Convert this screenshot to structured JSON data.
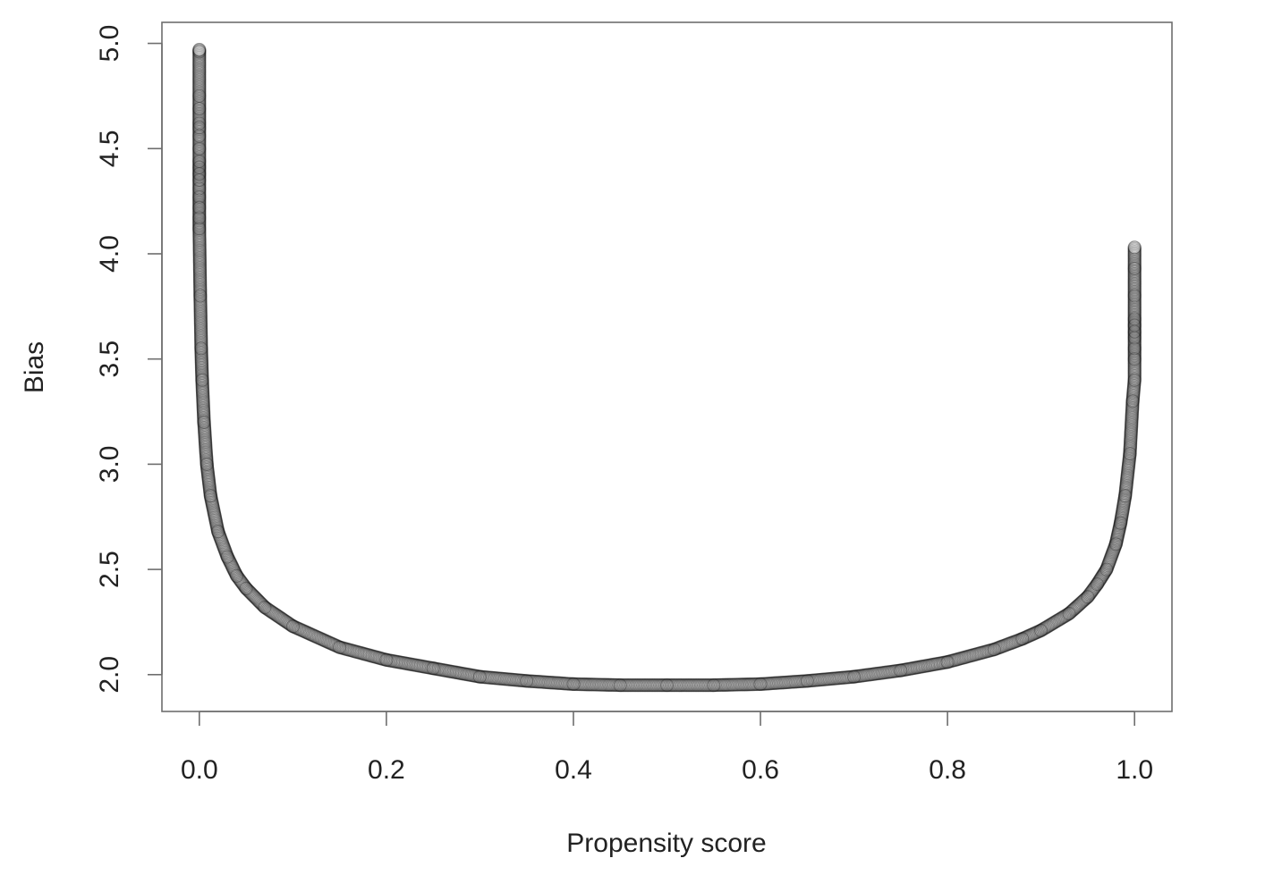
{
  "chart_data": {
    "type": "scatter",
    "title": "",
    "xlabel": "Propensity score",
    "ylabel": "Bias",
    "xlim": [
      -0.04,
      1.04
    ],
    "ylim": [
      1.825,
      5.1
    ],
    "x_ticks": [
      0.0,
      0.2,
      0.4,
      0.6,
      0.8,
      1.0
    ],
    "x_tick_labels": [
      "0.0",
      "0.2",
      "0.4",
      "0.6",
      "0.8",
      "1.0"
    ],
    "y_ticks": [
      2.0,
      2.5,
      3.0,
      3.5,
      4.0,
      4.5,
      5.0
    ],
    "y_tick_labels": [
      "2.0",
      "2.5",
      "3.0",
      "3.5",
      "4.0",
      "4.5",
      "5.0"
    ],
    "grid": false,
    "legend": "none",
    "marker": "open-circle",
    "series": [
      {
        "points": [
          {
            "x": 0.0,
            "y": 4.97
          },
          {
            "x": 0.0,
            "y": 4.96
          },
          {
            "x": 0.0,
            "y": 4.75
          },
          {
            "x": 0.0,
            "y": 4.69
          },
          {
            "x": 0.0,
            "y": 4.62
          },
          {
            "x": 0.0,
            "y": 4.6
          },
          {
            "x": 0.0,
            "y": 4.56
          },
          {
            "x": 0.0,
            "y": 4.5
          },
          {
            "x": 0.0,
            "y": 4.44
          },
          {
            "x": 0.0,
            "y": 4.41
          },
          {
            "x": 0.0,
            "y": 4.38
          },
          {
            "x": 0.0,
            "y": 4.35
          },
          {
            "x": 0.0,
            "y": 4.31
          },
          {
            "x": 0.0,
            "y": 4.27
          },
          {
            "x": 0.0,
            "y": 4.22
          },
          {
            "x": 0.0,
            "y": 4.17
          },
          {
            "x": 0.0,
            "y": 4.12
          },
          {
            "x": 0.001,
            "y": 3.8
          },
          {
            "x": 0.002,
            "y": 3.55
          },
          {
            "x": 0.003,
            "y": 3.4
          },
          {
            "x": 0.005,
            "y": 3.2
          },
          {
            "x": 0.008,
            "y": 3.0
          },
          {
            "x": 0.012,
            "y": 2.85
          },
          {
            "x": 0.02,
            "y": 2.68
          },
          {
            "x": 0.03,
            "y": 2.56
          },
          {
            "x": 0.04,
            "y": 2.47
          },
          {
            "x": 0.05,
            "y": 2.41
          },
          {
            "x": 0.07,
            "y": 2.32
          },
          {
            "x": 0.1,
            "y": 2.23
          },
          {
            "x": 0.15,
            "y": 2.13
          },
          {
            "x": 0.2,
            "y": 2.07
          },
          {
            "x": 0.25,
            "y": 2.03
          },
          {
            "x": 0.3,
            "y": 1.99
          },
          {
            "x": 0.35,
            "y": 1.97
          },
          {
            "x": 0.4,
            "y": 1.955
          },
          {
            "x": 0.45,
            "y": 1.95
          },
          {
            "x": 0.5,
            "y": 1.95
          },
          {
            "x": 0.55,
            "y": 1.95
          },
          {
            "x": 0.6,
            "y": 1.955
          },
          {
            "x": 0.65,
            "y": 1.97
          },
          {
            "x": 0.7,
            "y": 1.99
          },
          {
            "x": 0.75,
            "y": 2.02
          },
          {
            "x": 0.8,
            "y": 2.06
          },
          {
            "x": 0.85,
            "y": 2.12
          },
          {
            "x": 0.88,
            "y": 2.17
          },
          {
            "x": 0.9,
            "y": 2.21
          },
          {
            "x": 0.93,
            "y": 2.29
          },
          {
            "x": 0.95,
            "y": 2.37
          },
          {
            "x": 0.96,
            "y": 2.43
          },
          {
            "x": 0.97,
            "y": 2.5
          },
          {
            "x": 0.98,
            "y": 2.62
          },
          {
            "x": 0.985,
            "y": 2.72
          },
          {
            "x": 0.99,
            "y": 2.85
          },
          {
            "x": 0.995,
            "y": 3.05
          },
          {
            "x": 0.998,
            "y": 3.3
          },
          {
            "x": 1.0,
            "y": 3.4
          },
          {
            "x": 1.0,
            "y": 3.5
          },
          {
            "x": 1.0,
            "y": 3.55
          },
          {
            "x": 1.0,
            "y": 3.6
          },
          {
            "x": 1.0,
            "y": 3.63
          },
          {
            "x": 1.0,
            "y": 3.66
          },
          {
            "x": 1.0,
            "y": 3.69
          },
          {
            "x": 1.0,
            "y": 3.8
          },
          {
            "x": 1.0,
            "y": 3.93
          },
          {
            "x": 1.0,
            "y": 4.03
          }
        ]
      }
    ]
  }
}
